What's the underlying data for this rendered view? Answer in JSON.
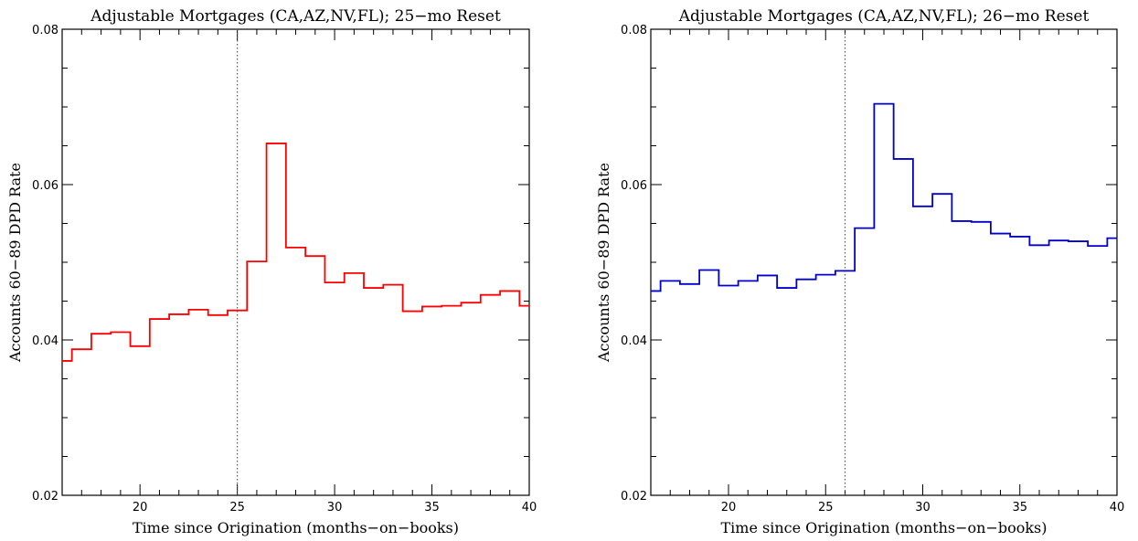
{
  "chart_data": [
    {
      "type": "line",
      "style": "step",
      "title": "Adjustable Mortgages (CA,AZ,NV,FL); 25−mo Reset",
      "xlabel": "Time since Origination (months−on−books)",
      "ylabel": "Accounts 60−89 DPD Rate",
      "xlim": [
        16,
        40
      ],
      "ylim": [
        0.02,
        0.08
      ],
      "xticks": [
        20,
        25,
        30,
        35,
        40
      ],
      "yticks": [
        0.02,
        0.04,
        0.06,
        0.08
      ],
      "xtick_labels": [
        "20",
        "25",
        "30",
        "35",
        "40"
      ],
      "ytick_labels": [
        "0.02",
        "0.04",
        "0.06",
        "0.08"
      ],
      "reset_month": 25,
      "reset_line_style": "dotted",
      "series": [
        {
          "color": "#ff0000",
          "x": [
            16,
            16.5,
            17.5,
            18.5,
            19.5,
            20.5,
            21.5,
            22.5,
            23.5,
            24.5,
            25.5,
            26.5,
            27.5,
            28.5,
            29.5,
            30.5,
            31.5,
            32.5,
            33.5,
            34.5,
            35.5,
            36.5,
            37.5,
            38.5,
            39.5
          ],
          "y": [
            0.0373,
            0.0388,
            0.0408,
            0.041,
            0.0392,
            0.0427,
            0.0433,
            0.0439,
            0.0432,
            0.0438,
            0.0501,
            0.0653,
            0.0519,
            0.0508,
            0.0474,
            0.0486,
            0.0467,
            0.0471,
            0.0437,
            0.0443,
            0.0444,
            0.0448,
            0.0458,
            0.0463,
            0.0444
          ]
        }
      ]
    },
    {
      "type": "line",
      "style": "step",
      "title": "Adjustable Mortgages (CA,AZ,NV,FL); 26−mo Reset",
      "xlabel": "Time since Origination (months−on−books)",
      "ylabel": "Accounts 60−89 DPD Rate",
      "xlim": [
        16,
        40
      ],
      "ylim": [
        0.02,
        0.08
      ],
      "xticks": [
        20,
        25,
        30,
        35,
        40
      ],
      "yticks": [
        0.02,
        0.04,
        0.06,
        0.08
      ],
      "xtick_labels": [
        "20",
        "25",
        "30",
        "35",
        "40"
      ],
      "ytick_labels": [
        "0.02",
        "0.04",
        "0.06",
        "0.08"
      ],
      "reset_month": 26,
      "reset_line_style": "dotted",
      "series": [
        {
          "color": "#0000cc",
          "x": [
            16,
            16.5,
            17.5,
            18.5,
            19.5,
            20.5,
            21.5,
            22.5,
            23.5,
            24.5,
            25.5,
            26.5,
            27.5,
            28.5,
            29.5,
            30.5,
            31.5,
            32.5,
            33.5,
            34.5,
            35.5,
            36.5,
            37.5,
            38.5,
            39.5
          ],
          "y": [
            0.0463,
            0.0476,
            0.0472,
            0.049,
            0.047,
            0.0476,
            0.0483,
            0.0467,
            0.0478,
            0.0484,
            0.0489,
            0.0544,
            0.0704,
            0.0633,
            0.0572,
            0.0588,
            0.0553,
            0.0552,
            0.0537,
            0.0533,
            0.0522,
            0.0528,
            0.0527,
            0.0521,
            0.0531
          ]
        }
      ]
    }
  ]
}
